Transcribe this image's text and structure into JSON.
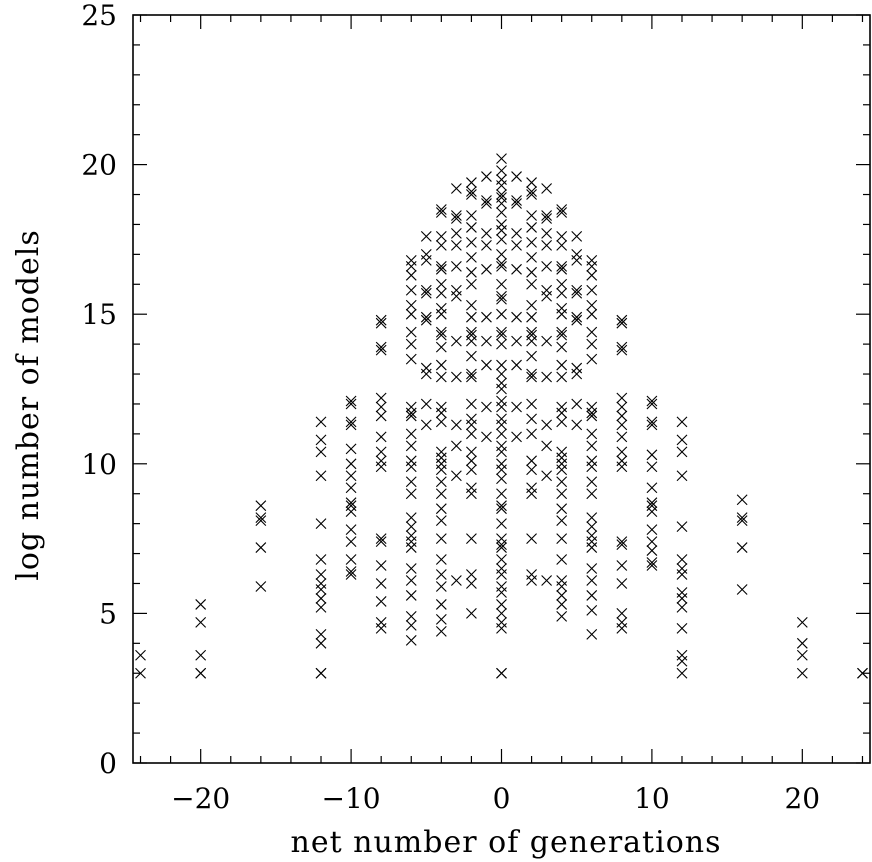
{
  "chart_data": {
    "type": "scatter",
    "title": "",
    "xlabel": "net number of generations",
    "ylabel": "log number of models",
    "xlim": [
      -24.5,
      24.5
    ],
    "ylim": [
      0,
      25
    ],
    "xticks": [
      -20,
      -10,
      0,
      10,
      20
    ],
    "xtick_labels": [
      "−20",
      "−10",
      "0",
      "10",
      "20"
    ],
    "yticks": [
      0,
      5,
      10,
      15,
      20,
      25
    ],
    "ytick_labels": [
      "0",
      "5",
      "10",
      "15",
      "20",
      "25"
    ],
    "marker": "x",
    "grid": false,
    "legend": "none",
    "points": [
      [
        -24,
        3.0
      ],
      [
        -24,
        3.6
      ],
      [
        -20,
        3.0
      ],
      [
        -20,
        3.0
      ],
      [
        -20,
        3.6
      ],
      [
        -20,
        4.7
      ],
      [
        -20,
        5.3
      ],
      [
        -16,
        5.9
      ],
      [
        -16,
        7.2
      ],
      [
        -16,
        8.1
      ],
      [
        -16,
        8.2
      ],
      [
        -16,
        8.6
      ],
      [
        -12,
        3.0
      ],
      [
        -12,
        3.0
      ],
      [
        -12,
        4.0
      ],
      [
        -12,
        4.3
      ],
      [
        -12,
        5.2
      ],
      [
        -12,
        5.5
      ],
      [
        -12,
        5.8
      ],
      [
        -12,
        6.0
      ],
      [
        -12,
        6.3
      ],
      [
        -12,
        6.8
      ],
      [
        -12,
        8.0
      ],
      [
        -12,
        9.6
      ],
      [
        -12,
        10.4
      ],
      [
        -12,
        10.8
      ],
      [
        -12,
        11.4
      ],
      [
        -10,
        6.3
      ],
      [
        -10,
        6.4
      ],
      [
        -10,
        6.8
      ],
      [
        -10,
        7.4
      ],
      [
        -10,
        7.8
      ],
      [
        -10,
        8.4
      ],
      [
        -10,
        8.6
      ],
      [
        -10,
        8.7
      ],
      [
        -10,
        9.2
      ],
      [
        -10,
        9.6
      ],
      [
        -10,
        10.0
      ],
      [
        -10,
        10.5
      ],
      [
        -10,
        11.3
      ],
      [
        -10,
        11.4
      ],
      [
        -10,
        12.0
      ],
      [
        -10,
        12.1
      ],
      [
        -8,
        4.5
      ],
      [
        -8,
        4.7
      ],
      [
        -8,
        5.4
      ],
      [
        -8,
        6.0
      ],
      [
        -8,
        6.6
      ],
      [
        -8,
        7.4
      ],
      [
        -8,
        7.5
      ],
      [
        -8,
        9.9
      ],
      [
        -8,
        10.1
      ],
      [
        -8,
        10.4
      ],
      [
        -8,
        10.9
      ],
      [
        -8,
        11.6
      ],
      [
        -8,
        11.9
      ],
      [
        -8,
        12.2
      ],
      [
        -8,
        13.8
      ],
      [
        -8,
        13.9
      ],
      [
        -8,
        14.7
      ],
      [
        -8,
        14.8
      ],
      [
        -6,
        4.1
      ],
      [
        -6,
        4.6
      ],
      [
        -6,
        4.9
      ],
      [
        -6,
        5.6
      ],
      [
        -6,
        6.1
      ],
      [
        -6,
        6.5
      ],
      [
        -6,
        7.2
      ],
      [
        -6,
        7.4
      ],
      [
        -6,
        7.6
      ],
      [
        -6,
        7.9
      ],
      [
        -6,
        8.2
      ],
      [
        -6,
        9.0
      ],
      [
        -6,
        9.4
      ],
      [
        -6,
        9.9
      ],
      [
        -6,
        10.1
      ],
      [
        -6,
        10.6
      ],
      [
        -6,
        11.0
      ],
      [
        -6,
        11.6
      ],
      [
        -6,
        11.7
      ],
      [
        -6,
        11.9
      ],
      [
        -6,
        13.5
      ],
      [
        -6,
        14.0
      ],
      [
        -6,
        14.4
      ],
      [
        -6,
        15.0
      ],
      [
        -6,
        15.3
      ],
      [
        -6,
        15.8
      ],
      [
        -6,
        16.3
      ],
      [
        -6,
        16.6
      ],
      [
        -6,
        16.8
      ],
      [
        -5,
        11.3
      ],
      [
        -5,
        12.0
      ],
      [
        -5,
        13.0
      ],
      [
        -5,
        13.2
      ],
      [
        -5,
        14.8
      ],
      [
        -5,
        14.9
      ],
      [
        -5,
        15.7
      ],
      [
        -5,
        15.8
      ],
      [
        -5,
        16.8
      ],
      [
        -5,
        17.0
      ],
      [
        -5,
        17.6
      ],
      [
        -4,
        4.4
      ],
      [
        -4,
        4.8
      ],
      [
        -4,
        5.3
      ],
      [
        -4,
        5.9
      ],
      [
        -4,
        6.3
      ],
      [
        -4,
        6.8
      ],
      [
        -4,
        7.5
      ],
      [
        -4,
        8.1
      ],
      [
        -4,
        8.5
      ],
      [
        -4,
        9.0
      ],
      [
        -4,
        9.4
      ],
      [
        -4,
        9.8
      ],
      [
        -4,
        10.0
      ],
      [
        -4,
        10.2
      ],
      [
        -4,
        10.4
      ],
      [
        -4,
        11.4
      ],
      [
        -4,
        11.7
      ],
      [
        -4,
        11.9
      ],
      [
        -4,
        12.9
      ],
      [
        -4,
        13.3
      ],
      [
        -4,
        13.9
      ],
      [
        -4,
        14.3
      ],
      [
        -4,
        14.4
      ],
      [
        -4,
        15.0
      ],
      [
        -4,
        15.2
      ],
      [
        -4,
        15.7
      ],
      [
        -4,
        16.0
      ],
      [
        -4,
        16.5
      ],
      [
        -4,
        16.6
      ],
      [
        -4,
        17.3
      ],
      [
        -4,
        17.6
      ],
      [
        -4,
        18.4
      ],
      [
        -4,
        18.5
      ],
      [
        -3,
        6.1
      ],
      [
        -3,
        9.6
      ],
      [
        -3,
        10.6
      ],
      [
        -3,
        11.3
      ],
      [
        -3,
        12.9
      ],
      [
        -3,
        14.1
      ],
      [
        -3,
        15.6
      ],
      [
        -3,
        15.8
      ],
      [
        -3,
        16.6
      ],
      [
        -3,
        17.3
      ],
      [
        -3,
        17.7
      ],
      [
        -3,
        18.2
      ],
      [
        -3,
        18.3
      ],
      [
        -3,
        19.2
      ],
      [
        -2,
        5.0
      ],
      [
        -2,
        6.0
      ],
      [
        -2,
        6.3
      ],
      [
        -2,
        7.5
      ],
      [
        -2,
        9.0
      ],
      [
        -2,
        9.2
      ],
      [
        -2,
        9.8
      ],
      [
        -2,
        10.1
      ],
      [
        -2,
        10.4
      ],
      [
        -2,
        11.0
      ],
      [
        -2,
        11.3
      ],
      [
        -2,
        11.5
      ],
      [
        -2,
        12.0
      ],
      [
        -2,
        12.9
      ],
      [
        -2,
        13.0
      ],
      [
        -2,
        13.6
      ],
      [
        -2,
        14.1
      ],
      [
        -2,
        14.3
      ],
      [
        -2,
        14.4
      ],
      [
        -2,
        14.9
      ],
      [
        -2,
        15.3
      ],
      [
        -2,
        16.0
      ],
      [
        -2,
        16.4
      ],
      [
        -2,
        16.9
      ],
      [
        -2,
        17.4
      ],
      [
        -2,
        17.9
      ],
      [
        -2,
        18.3
      ],
      [
        -2,
        19.0
      ],
      [
        -2,
        19.1
      ],
      [
        -2,
        19.4
      ],
      [
        -1,
        10.9
      ],
      [
        -1,
        11.9
      ],
      [
        -1,
        13.3
      ],
      [
        -1,
        14.1
      ],
      [
        -1,
        14.9
      ],
      [
        -1,
        16.5
      ],
      [
        -1,
        17.3
      ],
      [
        -1,
        17.7
      ],
      [
        -1,
        18.7
      ],
      [
        -1,
        18.8
      ],
      [
        -1,
        19.6
      ],
      [
        0,
        3.0
      ],
      [
        0,
        3.0
      ],
      [
        0,
        4.5
      ],
      [
        0,
        4.7
      ],
      [
        0,
        5.0
      ],
      [
        0,
        5.3
      ],
      [
        0,
        5.7
      ],
      [
        0,
        5.9
      ],
      [
        0,
        6.3
      ],
      [
        0,
        6.5
      ],
      [
        0,
        6.8
      ],
      [
        0,
        7.2
      ],
      [
        0,
        7.3
      ],
      [
        0,
        7.5
      ],
      [
        0,
        8.0
      ],
      [
        0,
        8.5
      ],
      [
        0,
        8.6
      ],
      [
        0,
        9.0
      ],
      [
        0,
        9.5
      ],
      [
        0,
        9.8
      ],
      [
        0,
        10.0
      ],
      [
        0,
        10.4
      ],
      [
        0,
        10.6
      ],
      [
        0,
        11.0
      ],
      [
        0,
        11.3
      ],
      [
        0,
        11.5
      ],
      [
        0,
        11.9
      ],
      [
        0,
        12.1
      ],
      [
        0,
        12.5
      ],
      [
        0,
        12.7
      ],
      [
        0,
        13.0
      ],
      [
        0,
        13.3
      ],
      [
        0,
        14.0
      ],
      [
        0,
        14.3
      ],
      [
        0,
        14.4
      ],
      [
        0,
        15.0
      ],
      [
        0,
        15.5
      ],
      [
        0,
        15.6
      ],
      [
        0,
        16.0
      ],
      [
        0,
        16.6
      ],
      [
        0,
        16.7
      ],
      [
        0,
        17.0
      ],
      [
        0,
        17.5
      ],
      [
        0,
        17.8
      ],
      [
        0,
        18.0
      ],
      [
        0,
        18.4
      ],
      [
        0,
        18.7
      ],
      [
        0,
        18.9
      ],
      [
        0,
        19.0
      ],
      [
        0,
        19.3
      ],
      [
        0,
        19.5
      ],
      [
        0,
        19.8
      ],
      [
        0,
        20.2
      ],
      [
        1,
        10.9
      ],
      [
        1,
        11.9
      ],
      [
        1,
        13.3
      ],
      [
        1,
        14.1
      ],
      [
        1,
        14.9
      ],
      [
        1,
        16.5
      ],
      [
        1,
        17.3
      ],
      [
        1,
        17.7
      ],
      [
        1,
        18.7
      ],
      [
        1,
        18.8
      ],
      [
        1,
        19.6
      ],
      [
        2,
        6.1
      ],
      [
        2,
        6.3
      ],
      [
        2,
        7.5
      ],
      [
        2,
        9.0
      ],
      [
        2,
        9.2
      ],
      [
        2,
        9.8
      ],
      [
        2,
        10.1
      ],
      [
        2,
        11.0
      ],
      [
        2,
        11.5
      ],
      [
        2,
        12.0
      ],
      [
        2,
        12.9
      ],
      [
        2,
        13.0
      ],
      [
        2,
        13.6
      ],
      [
        2,
        14.1
      ],
      [
        2,
        14.3
      ],
      [
        2,
        14.4
      ],
      [
        2,
        14.9
      ],
      [
        2,
        15.3
      ],
      [
        2,
        16.0
      ],
      [
        2,
        16.4
      ],
      [
        2,
        16.9
      ],
      [
        2,
        17.4
      ],
      [
        2,
        17.9
      ],
      [
        2,
        18.3
      ],
      [
        2,
        19.0
      ],
      [
        2,
        19.1
      ],
      [
        2,
        19.4
      ],
      [
        3,
        6.1
      ],
      [
        3,
        9.6
      ],
      [
        3,
        10.6
      ],
      [
        3,
        11.3
      ],
      [
        3,
        12.9
      ],
      [
        3,
        14.1
      ],
      [
        3,
        15.6
      ],
      [
        3,
        15.8
      ],
      [
        3,
        16.6
      ],
      [
        3,
        17.3
      ],
      [
        3,
        17.7
      ],
      [
        3,
        18.2
      ],
      [
        3,
        18.3
      ],
      [
        3,
        19.2
      ],
      [
        4,
        4.9
      ],
      [
        4,
        5.3
      ],
      [
        4,
        5.6
      ],
      [
        4,
        5.9
      ],
      [
        4,
        6.1
      ],
      [
        4,
        6.8
      ],
      [
        4,
        7.5
      ],
      [
        4,
        8.1
      ],
      [
        4,
        8.5
      ],
      [
        4,
        9.0
      ],
      [
        4,
        9.4
      ],
      [
        4,
        9.8
      ],
      [
        4,
        10.0
      ],
      [
        4,
        10.2
      ],
      [
        4,
        10.4
      ],
      [
        4,
        11.4
      ],
      [
        4,
        11.7
      ],
      [
        4,
        11.9
      ],
      [
        4,
        12.9
      ],
      [
        4,
        13.3
      ],
      [
        4,
        13.9
      ],
      [
        4,
        14.3
      ],
      [
        4,
        14.4
      ],
      [
        4,
        15.0
      ],
      [
        4,
        15.2
      ],
      [
        4,
        15.7
      ],
      [
        4,
        16.0
      ],
      [
        4,
        16.5
      ],
      [
        4,
        16.6
      ],
      [
        4,
        17.3
      ],
      [
        4,
        17.6
      ],
      [
        4,
        18.4
      ],
      [
        4,
        18.5
      ],
      [
        5,
        11.3
      ],
      [
        5,
        12.0
      ],
      [
        5,
        13.0
      ],
      [
        5,
        13.2
      ],
      [
        5,
        14.8
      ],
      [
        5,
        14.9
      ],
      [
        5,
        15.7
      ],
      [
        5,
        15.8
      ],
      [
        5,
        16.8
      ],
      [
        5,
        17.0
      ],
      [
        5,
        17.6
      ],
      [
        6,
        4.3
      ],
      [
        6,
        5.1
      ],
      [
        6,
        5.6
      ],
      [
        6,
        6.1
      ],
      [
        6,
        6.5
      ],
      [
        6,
        7.2
      ],
      [
        6,
        7.4
      ],
      [
        6,
        7.6
      ],
      [
        6,
        7.9
      ],
      [
        6,
        8.2
      ],
      [
        6,
        9.0
      ],
      [
        6,
        9.4
      ],
      [
        6,
        9.9
      ],
      [
        6,
        10.1
      ],
      [
        6,
        10.6
      ],
      [
        6,
        11.0
      ],
      [
        6,
        11.6
      ],
      [
        6,
        11.7
      ],
      [
        6,
        11.9
      ],
      [
        6,
        13.5
      ],
      [
        6,
        14.0
      ],
      [
        6,
        14.4
      ],
      [
        6,
        15.0
      ],
      [
        6,
        15.3
      ],
      [
        6,
        15.8
      ],
      [
        6,
        16.3
      ],
      [
        6,
        16.6
      ],
      [
        6,
        16.8
      ],
      [
        8,
        4.5
      ],
      [
        8,
        4.7
      ],
      [
        8,
        5.0
      ],
      [
        8,
        6.0
      ],
      [
        8,
        6.6
      ],
      [
        8,
        7.3
      ],
      [
        8,
        7.4
      ],
      [
        8,
        9.9
      ],
      [
        8,
        10.1
      ],
      [
        8,
        10.4
      ],
      [
        8,
        10.9
      ],
      [
        8,
        11.3
      ],
      [
        8,
        11.6
      ],
      [
        8,
        11.9
      ],
      [
        8,
        12.2
      ],
      [
        8,
        13.8
      ],
      [
        8,
        13.9
      ],
      [
        8,
        14.7
      ],
      [
        8,
        14.8
      ],
      [
        10,
        6.6
      ],
      [
        10,
        6.7
      ],
      [
        10,
        7.1
      ],
      [
        10,
        7.4
      ],
      [
        10,
        7.8
      ],
      [
        10,
        8.4
      ],
      [
        10,
        8.6
      ],
      [
        10,
        8.7
      ],
      [
        10,
        9.2
      ],
      [
        10,
        9.9
      ],
      [
        10,
        10.3
      ],
      [
        10,
        11.3
      ],
      [
        10,
        11.4
      ],
      [
        10,
        12.0
      ],
      [
        10,
        12.1
      ],
      [
        12,
        3.0
      ],
      [
        12,
        3.4
      ],
      [
        12,
        3.6
      ],
      [
        12,
        4.5
      ],
      [
        12,
        5.2
      ],
      [
        12,
        5.5
      ],
      [
        12,
        5.7
      ],
      [
        12,
        6.3
      ],
      [
        12,
        6.5
      ],
      [
        12,
        6.8
      ],
      [
        12,
        7.9
      ],
      [
        12,
        9.6
      ],
      [
        12,
        10.4
      ],
      [
        12,
        10.8
      ],
      [
        12,
        11.4
      ],
      [
        16,
        5.8
      ],
      [
        16,
        7.2
      ],
      [
        16,
        8.1
      ],
      [
        16,
        8.2
      ],
      [
        16,
        8.8
      ],
      [
        20,
        3.0
      ],
      [
        20,
        3.6
      ],
      [
        20,
        4.0
      ],
      [
        20,
        4.7
      ],
      [
        24,
        3.0
      ],
      [
        24,
        3.0
      ]
    ]
  }
}
